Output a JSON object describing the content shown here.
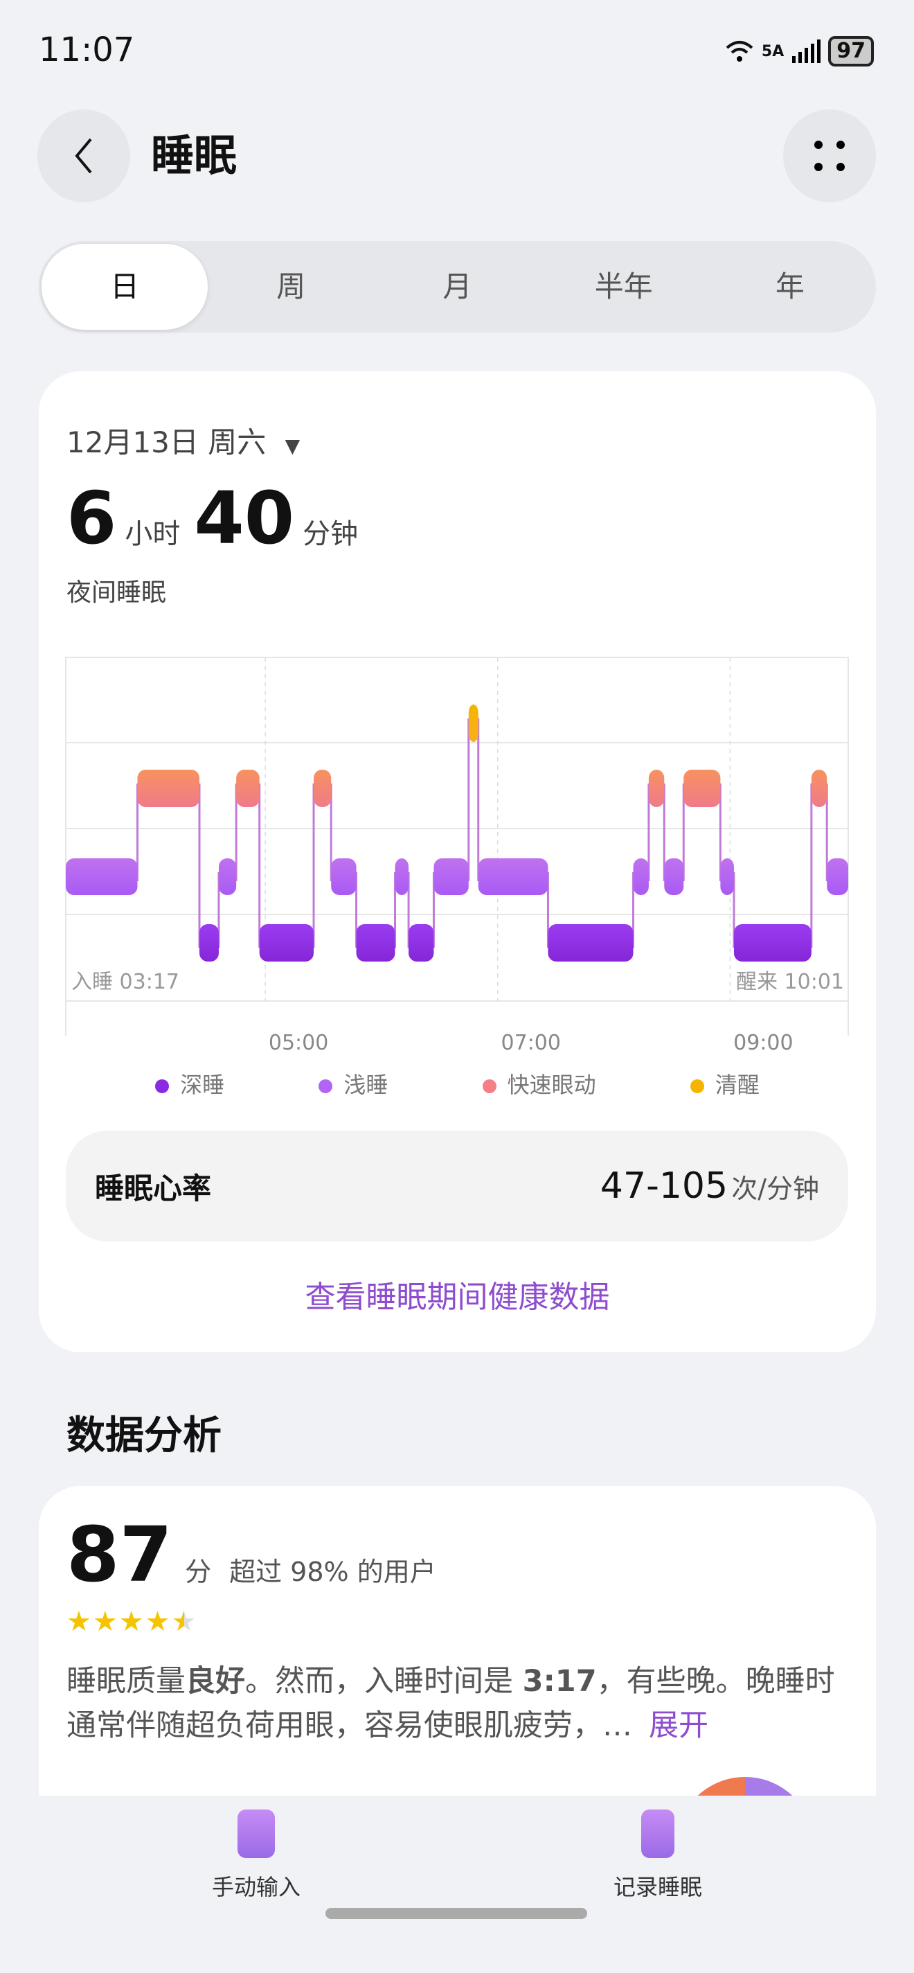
{
  "status": {
    "time": "11:07",
    "network": "5A",
    "battery": "97"
  },
  "header": {
    "title": "睡眠"
  },
  "tabs": [
    "日",
    "周",
    "月",
    "半年",
    "年"
  ],
  "selected_tab": 0,
  "summary": {
    "date": "12月13日 周六",
    "hours": "6",
    "hours_unit": "小时",
    "minutes": "40",
    "minutes_unit": "分钟",
    "subtitle": "夜间睡眠"
  },
  "chart_data": {
    "type": "sleep-stage-timeline",
    "start_label": "入睡 03:17",
    "end_label": "醒来 10:01",
    "start": "03:17",
    "end": "10:01",
    "x_ticks": [
      "05:00",
      "07:00",
      "09:00"
    ],
    "legend": [
      {
        "key": "deep",
        "label": "深睡",
        "color": "#8a2be2"
      },
      {
        "key": "light",
        "label": "浅睡",
        "color": "#b265f2"
      },
      {
        "key": "rem",
        "label": "快速眼动",
        "color": "#f57f86"
      },
      {
        "key": "awake",
        "label": "清醒",
        "color": "#f5b400"
      }
    ],
    "segments": [
      {
        "stage": "light",
        "start": "03:17",
        "end": "03:54"
      },
      {
        "stage": "rem",
        "start": "03:54",
        "end": "04:26"
      },
      {
        "stage": "deep",
        "start": "04:26",
        "end": "04:36"
      },
      {
        "stage": "light",
        "start": "04:36",
        "end": "04:45"
      },
      {
        "stage": "rem",
        "start": "04:45",
        "end": "04:57"
      },
      {
        "stage": "deep",
        "start": "04:57",
        "end": "05:25"
      },
      {
        "stage": "rem",
        "start": "05:25",
        "end": "05:34"
      },
      {
        "stage": "light",
        "start": "05:34",
        "end": "05:47"
      },
      {
        "stage": "deep",
        "start": "05:47",
        "end": "06:07"
      },
      {
        "stage": "light",
        "start": "06:07",
        "end": "06:14"
      },
      {
        "stage": "deep",
        "start": "06:14",
        "end": "06:27"
      },
      {
        "stage": "light",
        "start": "06:27",
        "end": "06:45"
      },
      {
        "stage": "awake",
        "start": "06:45",
        "end": "06:50"
      },
      {
        "stage": "light",
        "start": "06:50",
        "end": "07:26"
      },
      {
        "stage": "deep",
        "start": "07:26",
        "end": "08:10"
      },
      {
        "stage": "light",
        "start": "08:10",
        "end": "08:18"
      },
      {
        "stage": "rem",
        "start": "08:18",
        "end": "08:26"
      },
      {
        "stage": "light",
        "start": "08:26",
        "end": "08:36"
      },
      {
        "stage": "rem",
        "start": "08:36",
        "end": "08:55"
      },
      {
        "stage": "light",
        "start": "08:55",
        "end": "09:02"
      },
      {
        "stage": "deep",
        "start": "09:02",
        "end": "09:42"
      },
      {
        "stage": "rem",
        "start": "09:42",
        "end": "09:50"
      },
      {
        "stage": "light",
        "start": "09:50",
        "end": "10:01"
      }
    ]
  },
  "heart_rate": {
    "label": "睡眠心率",
    "value": "47-105",
    "unit": "次/分钟"
  },
  "link": "查看睡眠期间健康数据",
  "analysis": {
    "title": "数据分析",
    "score": "87",
    "score_unit": "分",
    "compare": "超过 98% 的用户",
    "stars": 4.5,
    "text_parts": [
      "睡眠质量",
      "良好",
      "。然而，入睡时间是 ",
      "3:17",
      "，有些晚。晚睡时通常伴随超负荷用眼，容易使眼肌疲劳，…"
    ],
    "expand": "展开"
  },
  "bottom": {
    "manual": "手动输入",
    "record": "记录睡眠"
  }
}
